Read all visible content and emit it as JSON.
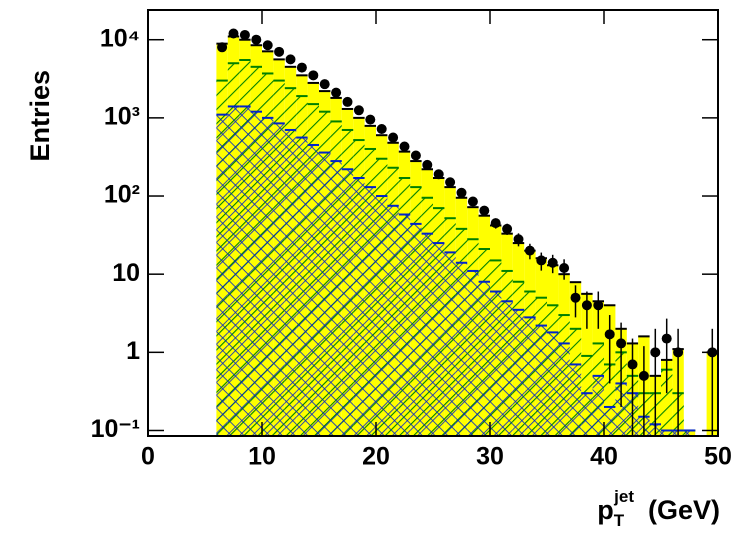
{
  "chart_data": {
    "type": "histogram",
    "y_label": "Entries",
    "x_label": {
      "base": "p",
      "sub": "T",
      "sup": "jet",
      "unit": "(GeV)"
    },
    "log_y": true,
    "xlim": [
      0,
      50
    ],
    "xticks": [
      0,
      10,
      20,
      30,
      40,
      50
    ],
    "ylim": [
      0.085,
      24000
    ],
    "yticks": [
      {
        "value": 0.1,
        "label": "10⁻¹"
      },
      1,
      10,
      {
        "value": 100,
        "label": "10²"
      },
      {
        "value": 1000,
        "label": "10³"
      },
      {
        "value": 10000,
        "label": "10⁴"
      }
    ],
    "bins": [
      6,
      7,
      8,
      9,
      10,
      11,
      12,
      13,
      14,
      15,
      16,
      17,
      18,
      19,
      20,
      21,
      22,
      23,
      24,
      25,
      26,
      27,
      28,
      29,
      30,
      31,
      32,
      33,
      34,
      35,
      36,
      37,
      38,
      39,
      40,
      41,
      42,
      43,
      44,
      45,
      46,
      47,
      48,
      49,
      50
    ],
    "series": [
      {
        "color": "#ffff00",
        "style": "solid",
        "values": [
          8900,
          11000,
          10000,
          8500,
          7100,
          5600,
          4500,
          3500,
          2800,
          2200,
          1800,
          1300,
          1000,
          790,
          600,
          480,
          370,
          280,
          220,
          170,
          130,
          95,
          72,
          56,
          42,
          33,
          25,
          20,
          16,
          13,
          10,
          7.9,
          5.6,
          4.5,
          4,
          2,
          1.3,
          1.6,
          0.5,
          0.8,
          1.1,
          0.1,
          null,
          1
        ]
      },
      {
        "color": "#008000",
        "style": "hatch",
        "values": [
          3000,
          5000,
          5500,
          4500,
          3700,
          3000,
          2400,
          1900,
          1500,
          1200,
          900,
          700,
          520,
          400,
          300,
          230,
          170,
          130,
          95,
          70,
          52,
          38,
          28,
          21,
          15,
          11,
          8,
          6,
          5,
          4,
          3,
          2,
          0.9,
          1.3,
          0.7,
          1,
          0.5,
          0.3,
          0.3,
          0.6,
          0.3,
          0.1,
          null,
          null
        ]
      },
      {
        "color": "#0022cc",
        "style": "crosshatch",
        "values": [
          1100,
          1400,
          1400,
          1200,
          1000,
          850,
          700,
          560,
          450,
          360,
          280,
          220,
          170,
          130,
          100,
          75,
          58,
          44,
          33,
          25,
          19,
          14,
          11,
          8,
          6,
          4.5,
          3.5,
          2.8,
          2.2,
          1.8,
          1.3,
          0.7,
          0.3,
          0.5,
          0.2,
          0.4,
          0.3,
          0.15,
          0.12,
          0.1,
          0.1,
          0.1,
          null,
          null
        ]
      }
    ],
    "points": {
      "color": "#000000",
      "x": [
        6.5,
        7.5,
        8.5,
        9.5,
        10.5,
        11.5,
        12.5,
        13.5,
        14.5,
        15.5,
        16.5,
        17.5,
        18.5,
        19.5,
        20.5,
        21.5,
        22.5,
        23.5,
        24.5,
        25.5,
        26.5,
        27.5,
        28.5,
        29.5,
        30.5,
        31.5,
        32.5,
        33.5,
        34.5,
        35.5,
        36.5,
        37.5,
        38.5,
        39.5,
        40.5,
        41.5,
        42.5,
        43.5,
        44.5,
        45.5,
        46.5,
        49.5
      ],
      "values": [
        8000,
        12000,
        11500,
        10000,
        8500,
        7000,
        5600,
        4400,
        3500,
        2700,
        2100,
        1600,
        1250,
        950,
        720,
        560,
        430,
        330,
        250,
        190,
        150,
        110,
        85,
        65,
        45,
        38,
        28,
        20,
        15,
        14,
        12,
        5,
        4,
        4,
        1.7,
        1.3,
        0.7,
        0.5,
        1,
        1.5,
        1,
        1
      ],
      "errors": [
        89,
        110,
        107,
        100,
        92,
        84,
        75,
        66,
        59,
        52,
        46,
        40,
        35,
        31,
        27,
        24,
        21,
        18,
        16,
        14,
        12,
        10.5,
        9.2,
        8.1,
        6.7,
        6.2,
        5.3,
        4.5,
        3.9,
        3.7,
        3.5,
        2.2,
        2,
        2,
        1.3,
        1.1,
        0.8,
        0.7,
        1,
        1.2,
        1,
        1
      ]
    }
  }
}
